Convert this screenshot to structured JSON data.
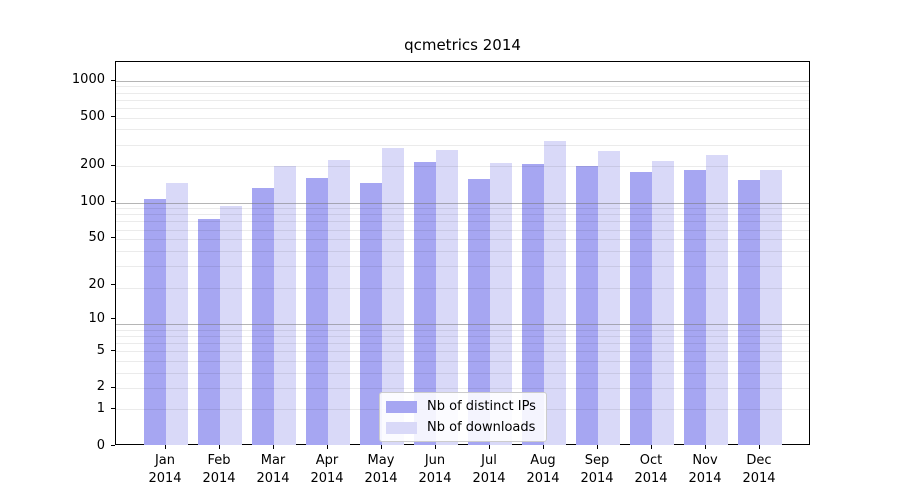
{
  "chart_data": {
    "type": "bar",
    "title": "qcmetrics 2014",
    "categories": [
      "Jan",
      "Feb",
      "Mar",
      "Apr",
      "May",
      "Jun",
      "Jul",
      "Aug",
      "Sep",
      "Oct",
      "Nov",
      "Dec"
    ],
    "x_year_line": "2014",
    "series": [
      {
        "name": "Nb of distinct IPs",
        "color": "#a6a6f2",
        "values": [
          106,
          73,
          130,
          159,
          144,
          214,
          154,
          207,
          197,
          178,
          185,
          153
        ]
      },
      {
        "name": "Nb of downloads",
        "color": "#d9d9f8",
        "values": [
          143,
          93,
          198,
          223,
          279,
          268,
          209,
          318,
          265,
          220,
          244,
          186
        ]
      }
    ],
    "xlabel": "",
    "ylabel": "",
    "yscale": "log1p",
    "y_ticks": [
      1000,
      500,
      200,
      100,
      50,
      20,
      10,
      5,
      2,
      1,
      0
    ],
    "ylim": [
      0,
      1430
    ],
    "grid": true,
    "legend_position": "lower center"
  },
  "colors": {
    "bar_ips": "#a6a6f2",
    "bar_downloads": "#d9d9f8",
    "grid_major": "#787878",
    "grid_minor": "#e8e8e8",
    "axis": "#000000",
    "legend_border": "#cccccc"
  }
}
